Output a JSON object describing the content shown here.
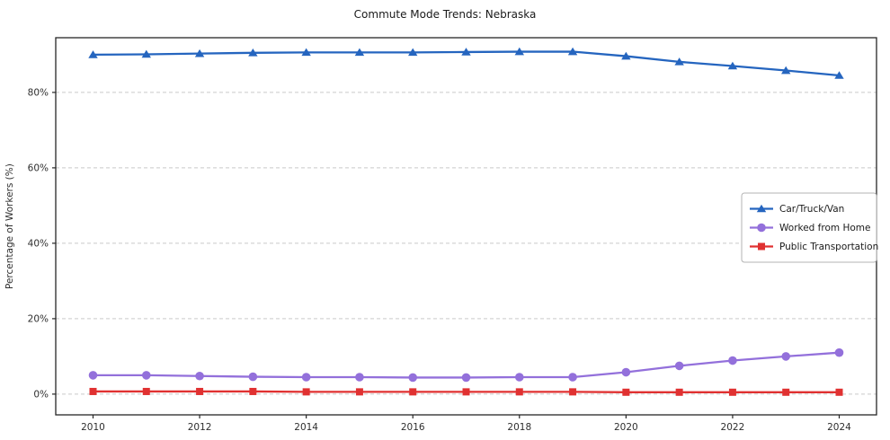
{
  "chart_data": {
    "type": "line",
    "title": "Commute Mode Trends: Nebraska",
    "xlabel": "",
    "ylabel": "Percentage of Workers (%)",
    "x": [
      2010,
      2011,
      2012,
      2013,
      2014,
      2015,
      2016,
      2017,
      2018,
      2019,
      2020,
      2021,
      2022,
      2023,
      2024
    ],
    "series": [
      {
        "name": "Car/Truck/Van",
        "color": "#2565bf",
        "marker": "triangle",
        "values": [
          90.0,
          90.1,
          90.3,
          90.5,
          90.6,
          90.6,
          90.6,
          90.7,
          90.8,
          90.8,
          89.6,
          88.1,
          87.0,
          85.8,
          84.5
        ]
      },
      {
        "name": "Worked from Home",
        "color": "#9370db",
        "marker": "circle",
        "values": [
          5.0,
          5.0,
          4.8,
          4.6,
          4.5,
          4.5,
          4.4,
          4.4,
          4.5,
          4.5,
          5.8,
          7.5,
          8.9,
          10.0,
          11.0
        ]
      },
      {
        "name": "Public Transportation",
        "color": "#e03131",
        "marker": "square",
        "values": [
          0.7,
          0.7,
          0.7,
          0.7,
          0.6,
          0.6,
          0.6,
          0.6,
          0.6,
          0.6,
          0.5,
          0.5,
          0.5,
          0.5,
          0.5
        ]
      }
    ],
    "xticks": [
      2010,
      2012,
      2014,
      2016,
      2018,
      2020,
      2022,
      2024
    ],
    "yticks": [
      0,
      20,
      40,
      60,
      80
    ],
    "ytick_suffix": "%",
    "xlim": [
      2009.3,
      2024.7
    ],
    "ylim": [
      -5.5,
      94.5
    ],
    "grid": "horizontal-dashed",
    "legend": {
      "position": "right-center",
      "entries": [
        "Car/Truck/Van",
        "Worked from Home",
        "Public Transportation"
      ]
    }
  }
}
